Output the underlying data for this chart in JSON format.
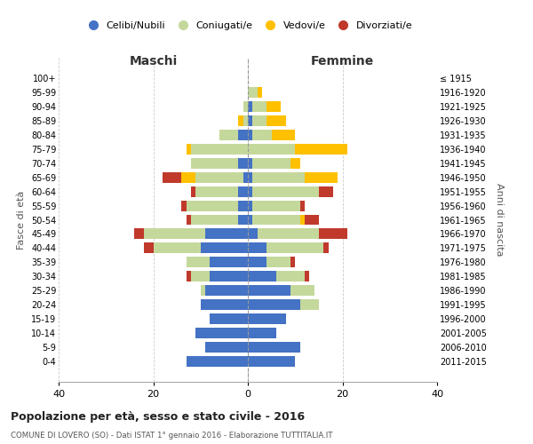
{
  "age_groups": [
    "0-4",
    "5-9",
    "10-14",
    "15-19",
    "20-24",
    "25-29",
    "30-34",
    "35-39",
    "40-44",
    "45-49",
    "50-54",
    "55-59",
    "60-64",
    "65-69",
    "70-74",
    "75-79",
    "80-84",
    "85-89",
    "90-94",
    "95-99",
    "100+"
  ],
  "birth_years": [
    "2011-2015",
    "2006-2010",
    "2001-2005",
    "1996-2000",
    "1991-1995",
    "1986-1990",
    "1981-1985",
    "1976-1980",
    "1971-1975",
    "1966-1970",
    "1961-1965",
    "1956-1960",
    "1951-1955",
    "1946-1950",
    "1941-1945",
    "1936-1940",
    "1931-1935",
    "1926-1930",
    "1921-1925",
    "1916-1920",
    "≤ 1915"
  ],
  "maschi": {
    "celibi": [
      13,
      9,
      11,
      8,
      10,
      9,
      8,
      8,
      10,
      9,
      2,
      2,
      2,
      1,
      2,
      0,
      2,
      0,
      0,
      0,
      0
    ],
    "coniugati": [
      0,
      0,
      0,
      0,
      0,
      1,
      4,
      5,
      10,
      13,
      10,
      11,
      9,
      10,
      10,
      12,
      4,
      1,
      1,
      0,
      0
    ],
    "vedovi": [
      0,
      0,
      0,
      0,
      0,
      0,
      0,
      0,
      0,
      0,
      0,
      0,
      0,
      3,
      0,
      1,
      0,
      1,
      0,
      0,
      0
    ],
    "divorziati": [
      0,
      0,
      0,
      0,
      0,
      0,
      1,
      0,
      2,
      2,
      1,
      1,
      1,
      4,
      0,
      0,
      0,
      0,
      0,
      0,
      0
    ]
  },
  "femmine": {
    "nubili": [
      10,
      11,
      6,
      8,
      11,
      9,
      6,
      4,
      4,
      2,
      1,
      1,
      1,
      1,
      1,
      0,
      1,
      1,
      1,
      0,
      0
    ],
    "coniugate": [
      0,
      0,
      0,
      0,
      4,
      5,
      6,
      5,
      12,
      13,
      10,
      10,
      14,
      11,
      8,
      10,
      4,
      3,
      3,
      2,
      0
    ],
    "vedove": [
      0,
      0,
      0,
      0,
      0,
      0,
      0,
      0,
      0,
      0,
      1,
      0,
      0,
      7,
      2,
      11,
      5,
      4,
      3,
      1,
      0
    ],
    "divorziate": [
      0,
      0,
      0,
      0,
      0,
      0,
      1,
      1,
      1,
      6,
      3,
      1,
      3,
      0,
      0,
      0,
      0,
      0,
      0,
      0,
      0
    ]
  },
  "colors": {
    "celibi": "#4472c4",
    "coniugati": "#c5d89b",
    "vedovi": "#ffc000",
    "divorziati": "#c0392b"
  },
  "title": "Popolazione per età, sesso e stato civile - 2016",
  "subtitle": "COMUNE DI LOVERO (SO) - Dati ISTAT 1° gennaio 2016 - Elaborazione TUTTITALIA.IT",
  "ylabel_left": "Fasce di età",
  "ylabel_right": "Anni di nascita",
  "xlabel_maschi": "Maschi",
  "xlabel_femmine": "Femmine",
  "xlim": 40,
  "background_color": "#ffffff",
  "grid_color": "#cccccc"
}
